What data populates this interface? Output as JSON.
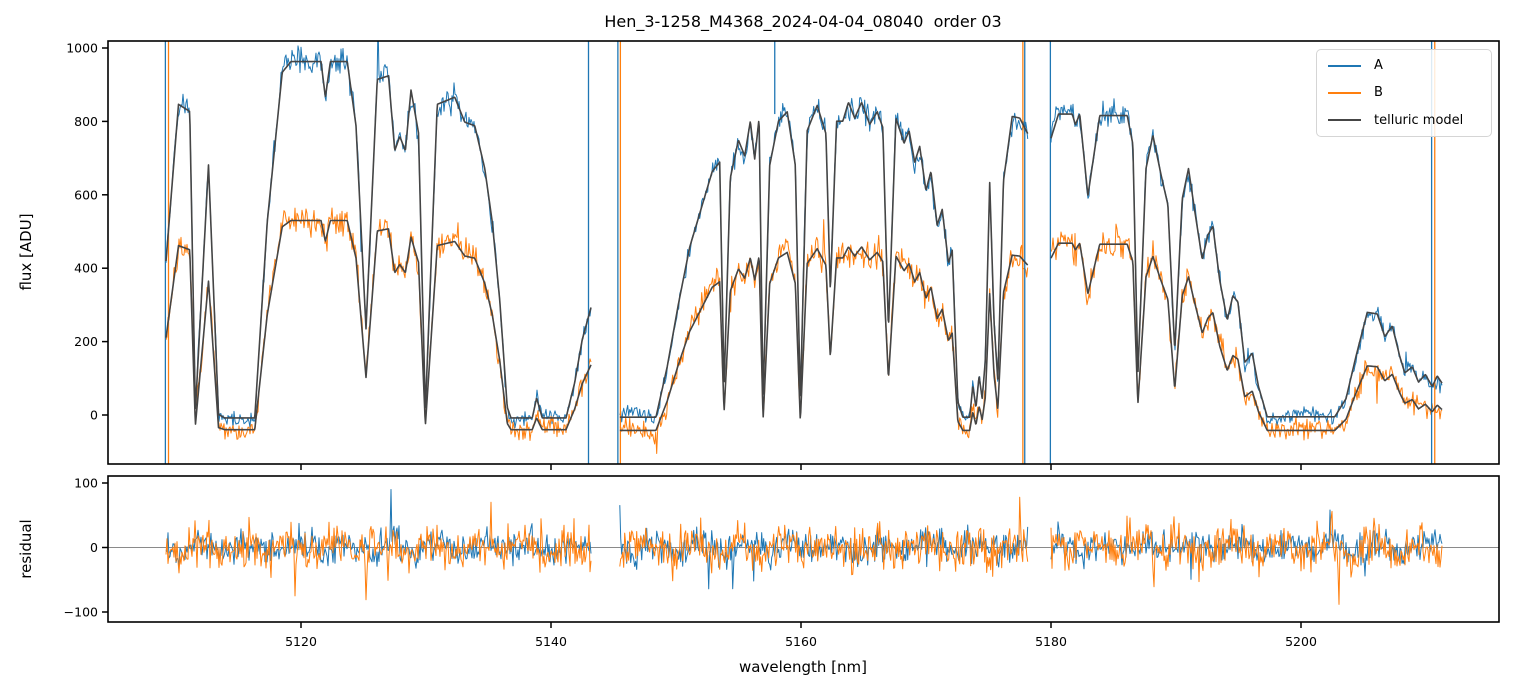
{
  "title": "Hen_3-1258_M4368_2024-04-04_08040  order 03",
  "colors": {
    "A": "#1f77b4",
    "B": "#ff7f0e",
    "model": "#454545",
    "axis": "#000000",
    "zero_line": "#8a8a8a",
    "legend_border": "#d5d5d5"
  },
  "legend": {
    "items": [
      {
        "label": "A",
        "color_key": "A"
      },
      {
        "label": "B",
        "color_key": "B"
      },
      {
        "label": "telluric model",
        "color_key": "model"
      }
    ]
  },
  "chart_data": {
    "type": "line",
    "title": "Hen_3-1258_M4368_2024-04-04_08040  order 03",
    "xlabel": "wavelength [nm]",
    "xlim": [
      5104.6,
      5215.8
    ],
    "xticks": [
      5120,
      5140,
      5160,
      5180,
      5200
    ],
    "panels": [
      {
        "name": "flux",
        "ylabel": "flux [ADU]",
        "ylim": [
          -133,
          1019
        ],
        "yticks": [
          0,
          200,
          400,
          600,
          800,
          1000
        ]
      },
      {
        "name": "residual",
        "ylabel": "residual",
        "ylim": [
          -116,
          111
        ],
        "yticks": [
          -100,
          0,
          100
        ]
      }
    ],
    "series": [
      "A",
      "B",
      "telluric model"
    ],
    "segments": [
      {
        "x_range": [
          5109.2,
          5143.2
        ],
        "scale": {
          "A": {
            "amp": 971,
            "off": -8
          },
          "B": {
            "amp": 570,
            "off": -40
          }
        },
        "transmission": [
          [
            5109.2,
            0.44
          ],
          [
            5110.2,
            0.88
          ],
          [
            5111.1,
            0.86
          ],
          [
            5111.55,
            0.02
          ],
          [
            5112.6,
            0.71
          ],
          [
            5113.4,
            0.01
          ],
          [
            5113.9,
            0.0
          ],
          [
            5116.3,
            0.0
          ],
          [
            5117.3,
            0.55
          ],
          [
            5118.5,
            0.97
          ],
          [
            5119.2,
            1.0
          ],
          [
            5121.6,
            1.0
          ],
          [
            5121.95,
            0.9
          ],
          [
            5122.35,
            1.0
          ],
          [
            5123.7,
            1.0
          ],
          [
            5124.4,
            0.82
          ],
          [
            5125.2,
            0.25
          ],
          [
            5126.1,
            0.95
          ],
          [
            5127.0,
            0.96
          ],
          [
            5127.5,
            0.75
          ],
          [
            5127.9,
            0.79
          ],
          [
            5128.35,
            0.75
          ],
          [
            5128.8,
            0.92
          ],
          [
            5129.4,
            0.8
          ],
          [
            5129.95,
            0.02
          ],
          [
            5130.9,
            0.88
          ],
          [
            5132.3,
            0.9
          ],
          [
            5133.1,
            0.83
          ],
          [
            5133.9,
            0.82
          ],
          [
            5134.7,
            0.7
          ],
          [
            5135.3,
            0.55
          ],
          [
            5135.9,
            0.33
          ],
          [
            5136.5,
            0.03
          ],
          [
            5136.8,
            0.0
          ],
          [
            5138.5,
            0.0
          ],
          [
            5138.85,
            0.056
          ],
          [
            5139.3,
            0.0
          ],
          [
            5141.2,
            0.0
          ],
          [
            5141.9,
            0.1
          ],
          [
            5142.5,
            0.22
          ],
          [
            5143.2,
            0.31
          ]
        ]
      },
      {
        "x_range": [
          5145.5,
          5178.15
        ],
        "scale": {
          "A": {
            "amp": 858,
            "off": -6
          },
          "B": {
            "amp": 500,
            "off": -42
          }
        },
        "transmission": [
          [
            5145.5,
            0.0
          ],
          [
            5148.4,
            0.0
          ],
          [
            5149.3,
            0.16
          ],
          [
            5150.2,
            0.36
          ],
          [
            5151.1,
            0.54
          ],
          [
            5152.0,
            0.66
          ],
          [
            5152.9,
            0.78
          ],
          [
            5153.5,
            0.81
          ],
          [
            5153.85,
            0.1
          ],
          [
            5154.35,
            0.76
          ],
          [
            5155.0,
            0.88
          ],
          [
            5155.5,
            0.83
          ],
          [
            5155.95,
            0.94
          ],
          [
            5156.3,
            0.82
          ],
          [
            5156.65,
            0.95
          ],
          [
            5156.97,
            0.06
          ],
          [
            5157.5,
            0.8
          ],
          [
            5158.2,
            0.94
          ],
          [
            5158.9,
            0.97
          ],
          [
            5159.55,
            0.8
          ],
          [
            5159.95,
            0.05
          ],
          [
            5160.5,
            0.91
          ],
          [
            5161.3,
            0.99
          ],
          [
            5162.0,
            0.9
          ],
          [
            5162.35,
            0.4
          ],
          [
            5162.85,
            0.94
          ],
          [
            5163.35,
            0.94
          ],
          [
            5163.8,
            1.0
          ],
          [
            5164.3,
            0.95
          ],
          [
            5164.85,
            1.0
          ],
          [
            5165.5,
            0.93
          ],
          [
            5166.1,
            0.97
          ],
          [
            5166.55,
            0.92
          ],
          [
            5167.0,
            0.28
          ],
          [
            5167.6,
            0.95
          ],
          [
            5168.25,
            0.87
          ],
          [
            5168.65,
            0.91
          ],
          [
            5169.1,
            0.81
          ],
          [
            5169.5,
            0.86
          ],
          [
            5170.0,
            0.72
          ],
          [
            5170.4,
            0.78
          ],
          [
            5170.9,
            0.61
          ],
          [
            5171.3,
            0.66
          ],
          [
            5171.8,
            0.49
          ],
          [
            5172.1,
            0.53
          ],
          [
            5172.55,
            0.05
          ],
          [
            5172.95,
            0.0
          ],
          [
            5173.5,
            0.0
          ],
          [
            5173.75,
            0.1
          ],
          [
            5174.0,
            0.03
          ],
          [
            5174.25,
            0.13
          ],
          [
            5174.5,
            0.06
          ],
          [
            5174.75,
            0.18
          ],
          [
            5175.1,
            0.745
          ],
          [
            5175.45,
            0.3
          ],
          [
            5175.75,
            0.115
          ],
          [
            5176.2,
            0.75
          ],
          [
            5176.9,
            0.955
          ],
          [
            5177.5,
            0.95
          ],
          [
            5178.15,
            0.9
          ]
        ]
      },
      {
        "x_range": [
          5180.0,
          5211.3
        ],
        "scale": {
          "A": {
            "amp": 825,
            "off": -5
          },
          "B": {
            "amp": 510,
            "off": -42
          }
        },
        "transmission": [
          [
            5180.0,
            0.92
          ],
          [
            5180.6,
            1.0
          ],
          [
            5181.7,
            1.0
          ],
          [
            5181.95,
            0.965
          ],
          [
            5182.3,
            1.0
          ],
          [
            5182.95,
            0.73
          ],
          [
            5183.9,
            0.995
          ],
          [
            5186.1,
            0.995
          ],
          [
            5186.55,
            0.9
          ],
          [
            5186.95,
            0.14
          ],
          [
            5187.6,
            0.82
          ],
          [
            5188.15,
            0.93
          ],
          [
            5188.8,
            0.8
          ],
          [
            5189.35,
            0.7
          ],
          [
            5189.9,
            0.22
          ],
          [
            5190.5,
            0.72
          ],
          [
            5191.0,
            0.82
          ],
          [
            5191.5,
            0.68
          ],
          [
            5192.1,
            0.52
          ],
          [
            5192.55,
            0.6
          ],
          [
            5192.95,
            0.63
          ],
          [
            5193.5,
            0.45
          ],
          [
            5194.1,
            0.32
          ],
          [
            5194.55,
            0.4
          ],
          [
            5194.95,
            0.38
          ],
          [
            5195.5,
            0.18
          ],
          [
            5196.1,
            0.21
          ],
          [
            5196.6,
            0.1
          ],
          [
            5197.3,
            0.0
          ],
          [
            5202.7,
            0.0
          ],
          [
            5203.6,
            0.06
          ],
          [
            5204.4,
            0.2
          ],
          [
            5205.3,
            0.345
          ],
          [
            5206.1,
            0.34
          ],
          [
            5206.7,
            0.265
          ],
          [
            5207.3,
            0.3
          ],
          [
            5207.9,
            0.2
          ],
          [
            5208.3,
            0.145
          ],
          [
            5208.9,
            0.165
          ],
          [
            5209.4,
            0.115
          ],
          [
            5209.95,
            0.14
          ],
          [
            5210.5,
            0.1
          ],
          [
            5210.9,
            0.135
          ],
          [
            5211.3,
            0.11
          ]
        ]
      }
    ],
    "artifact_vlines": [
      {
        "wl": 5109.15,
        "series": "A",
        "extent": "full"
      },
      {
        "wl": 5109.4,
        "series": "B",
        "extent": "full"
      },
      {
        "wl": 5143.0,
        "series": "A",
        "extent": "full"
      },
      {
        "wl": 5145.35,
        "series": "A",
        "extent": "full"
      },
      {
        "wl": 5145.55,
        "series": "B",
        "extent": "full"
      },
      {
        "wl": 5157.9,
        "series": "A",
        "extent": "top"
      },
      {
        "wl": 5177.75,
        "series": "B",
        "extent": "full"
      },
      {
        "wl": 5177.9,
        "series": "A",
        "extent": "full"
      },
      {
        "wl": 5179.95,
        "series": "A",
        "extent": "full"
      },
      {
        "wl": 5210.45,
        "series": "A",
        "extent": "full"
      },
      {
        "wl": 5210.7,
        "series": "B",
        "extent": "full"
      }
    ],
    "noise": {
      "seed": 20240404,
      "main": {
        "A": {
          "base": 30,
          "t_scale": 22
        },
        "B": {
          "base": 40,
          "t_scale": 18
        }
      },
      "residual": {
        "A": 38,
        "B": 46
      },
      "spike_prob": 0.012
    }
  }
}
